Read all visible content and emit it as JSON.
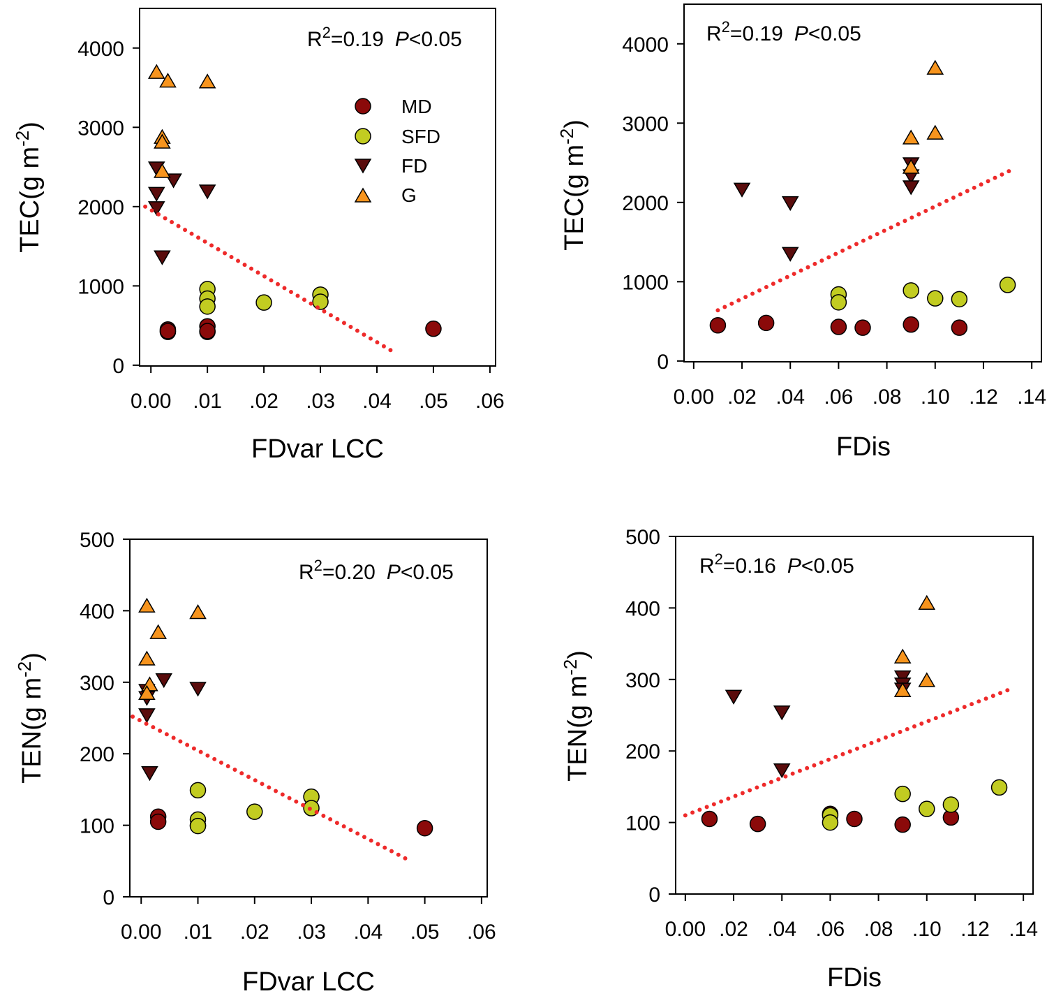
{
  "colors": {
    "MD": "#8b0a0a",
    "SFD": "#c2cc21",
    "FD": "#5a0c0c",
    "G": "#f7941d",
    "fit": "#ee2a2a"
  },
  "legend": [
    {
      "label": "MD",
      "shape": "circle"
    },
    {
      "label": "SFD",
      "shape": "circle"
    },
    {
      "label": "FD",
      "shape": "triangle-down"
    },
    {
      "label": "G",
      "shape": "triangle-up"
    }
  ],
  "chart_data": [
    {
      "type": "scatter",
      "id": "tec-fdvar",
      "xlabel": "FDvar LCC",
      "ylabel": "TEC(g m-2)",
      "ylabel_base": "TEC(g m",
      "ylabel_exp": "-2",
      "ylabel_end": ")",
      "xlim": [
        -0.002,
        0.061
      ],
      "ylim": [
        -10,
        4500
      ],
      "xticks": [
        0,
        0.01,
        0.02,
        0.03,
        0.04,
        0.05,
        0.06
      ],
      "xtick_labels": [
        "0.00",
        ".01",
        ".02",
        ".03",
        ".04",
        ".05",
        ".06"
      ],
      "yticks": [
        0,
        1000,
        2000,
        3000,
        4000
      ],
      "ytick_labels": [
        "0",
        "1000",
        "2000",
        "3000",
        "4000"
      ],
      "stat": {
        "r2_prefix": "R",
        "r2_sup": "2",
        "r2_value": "=0.19",
        "p_letter": "P",
        "p_value": "<0.05"
      },
      "fit": {
        "x": [
          -0.001,
          0.043
        ],
        "y": [
          2000,
          165
        ]
      },
      "show_legend": true,
      "series": [
        {
          "name": "MD",
          "points": [
            [
              0.003,
              450
            ],
            [
              0.003,
              420
            ],
            [
              0.003,
              430
            ],
            [
              0.01,
              490
            ],
            [
              0.01,
              420
            ],
            [
              0.01,
              430
            ],
            [
              0.05,
              460
            ]
          ]
        },
        {
          "name": "SFD",
          "points": [
            [
              0.01,
              960
            ],
            [
              0.01,
              840
            ],
            [
              0.01,
              740
            ],
            [
              0.02,
              790
            ],
            [
              0.03,
              890
            ],
            [
              0.03,
              800
            ]
          ]
        },
        {
          "name": "FD",
          "points": [
            [
              0.001,
              2500
            ],
            [
              0.001,
              2180
            ],
            [
              0.001,
              2000
            ],
            [
              0.002,
              1380
            ],
            [
              0.004,
              2350
            ],
            [
              0.01,
              2210
            ]
          ]
        },
        {
          "name": "G",
          "points": [
            [
              0.001,
              3680
            ],
            [
              0.003,
              3570
            ],
            [
              0.002,
              2860
            ],
            [
              0.002,
              2800
            ],
            [
              0.002,
              2430
            ],
            [
              0.01,
              3560
            ]
          ]
        }
      ]
    },
    {
      "type": "scatter",
      "id": "tec-fdis",
      "xlabel": "FDis",
      "ylabel": "TEC(g m-2)",
      "ylabel_base": "TEC(g m",
      "ylabel_exp": "-2",
      "ylabel_end": ")",
      "xlim": [
        -0.004,
        0.144
      ],
      "ylim": [
        -10,
        4500
      ],
      "xticks": [
        0,
        0.02,
        0.04,
        0.06,
        0.08,
        0.1,
        0.12,
        0.14
      ],
      "xtick_labels": [
        "0.00",
        ".02",
        ".04",
        ".06",
        ".08",
        ".10",
        ".12",
        ".14"
      ],
      "yticks": [
        0,
        1000,
        2000,
        3000,
        4000
      ],
      "ytick_labels": [
        "0",
        "1000",
        "2000",
        "3000",
        "4000"
      ],
      "stat": {
        "r2_prefix": "R",
        "r2_sup": "2",
        "r2_value": "=0.19",
        "p_letter": "P",
        "p_value": "<0.05"
      },
      "fit": {
        "x": [
          0.01,
          0.133
        ],
        "y": [
          640,
          2430
        ]
      },
      "show_legend": false,
      "series": [
        {
          "name": "MD",
          "points": [
            [
              0.01,
              450
            ],
            [
              0.03,
              480
            ],
            [
              0.06,
              430
            ],
            [
              0.07,
              420
            ],
            [
              0.09,
              460
            ],
            [
              0.11,
              420
            ]
          ]
        },
        {
          "name": "SFD",
          "points": [
            [
              0.06,
              840
            ],
            [
              0.06,
              740
            ],
            [
              0.09,
              890
            ],
            [
              0.1,
              790
            ],
            [
              0.11,
              780
            ],
            [
              0.13,
              960
            ]
          ]
        },
        {
          "name": "FD",
          "points": [
            [
              0.02,
              2180
            ],
            [
              0.04,
              2010
            ],
            [
              0.04,
              1370
            ],
            [
              0.09,
              2500
            ],
            [
              0.09,
              2350
            ],
            [
              0.09,
              2210
            ]
          ]
        },
        {
          "name": "G",
          "points": [
            [
              0.1,
              3680
            ],
            [
              0.09,
              2800
            ],
            [
              0.1,
              2860
            ],
            [
              0.09,
              2430
            ]
          ]
        }
      ]
    },
    {
      "type": "scatter",
      "id": "ten-fdvar",
      "xlabel": "FDvar LCC",
      "ylabel": "TEN(g m-2)",
      "ylabel_base": "TEN(g m",
      "ylabel_exp": "-2",
      "ylabel_end": ")",
      "xlim": [
        -0.002,
        0.061
      ],
      "ylim": [
        0,
        500
      ],
      "xticks": [
        0,
        0.01,
        0.02,
        0.03,
        0.04,
        0.05,
        0.06
      ],
      "xtick_labels": [
        "0.00",
        ".01",
        ".02",
        ".03",
        ".04",
        ".05",
        ".06"
      ],
      "yticks": [
        0,
        100,
        200,
        300,
        400,
        500
      ],
      "ytick_labels": [
        "0",
        "100",
        "200",
        "300",
        "400",
        "500"
      ],
      "stat": {
        "r2_prefix": "R",
        "r2_sup": "2",
        "r2_value": "=0.20",
        "p_letter": "P",
        "p_value": "<0.05"
      },
      "fit": {
        "x": [
          -0.0015,
          0.047
        ],
        "y": [
          252,
          52
        ]
      },
      "show_legend": false,
      "series": [
        {
          "name": "MD",
          "points": [
            [
              0.003,
              112
            ],
            [
              0.003,
              105
            ],
            [
              0.01,
              100
            ],
            [
              0.05,
              96
            ]
          ]
        },
        {
          "name": "SFD",
          "points": [
            [
              0.01,
              149
            ],
            [
              0.01,
              108
            ],
            [
              0.01,
              99
            ],
            [
              0.02,
              119
            ],
            [
              0.03,
              140
            ],
            [
              0.03,
              124
            ]
          ]
        },
        {
          "name": "FD",
          "points": [
            [
              0.001,
              290
            ],
            [
              0.001,
              280
            ],
            [
              0.001,
              256
            ],
            [
              0.0015,
              175
            ],
            [
              0.004,
              305
            ],
            [
              0.01,
              293
            ]
          ]
        },
        {
          "name": "G",
          "points": [
            [
              0.001,
              405
            ],
            [
              0.003,
              368
            ],
            [
              0.001,
              331
            ],
            [
              0.0015,
              295
            ],
            [
              0.001,
              283
            ],
            [
              0.01,
              396
            ]
          ]
        }
      ]
    },
    {
      "type": "scatter",
      "id": "ten-fdis",
      "xlabel": "FDis",
      "ylabel": "TEN(g m-2)",
      "ylabel_base": "TEN(g m",
      "ylabel_exp": "-2",
      "ylabel_end": ")",
      "xlim": [
        -0.004,
        0.144
      ],
      "ylim": [
        0,
        500
      ],
      "xticks": [
        0,
        0.02,
        0.04,
        0.06,
        0.08,
        0.1,
        0.12,
        0.14
      ],
      "xtick_labels": [
        "0.00",
        ".02",
        ".04",
        ".06",
        ".08",
        ".10",
        ".12",
        ".14"
      ],
      "yticks": [
        0,
        100,
        200,
        300,
        400,
        500
      ],
      "ytick_labels": [
        "0",
        "100",
        "200",
        "300",
        "400",
        "500"
      ],
      "stat": {
        "r2_prefix": "R",
        "r2_sup": "2",
        "r2_value": "=0.16",
        "p_letter": "P",
        "p_value": "<0.05"
      },
      "fit": {
        "x": [
          0,
          0.135
        ],
        "y": [
          110,
          287
        ]
      },
      "show_legend": false,
      "series": [
        {
          "name": "MD",
          "points": [
            [
              0.01,
              105
            ],
            [
              0.03,
              98
            ],
            [
              0.06,
              112
            ],
            [
              0.07,
              105
            ],
            [
              0.09,
              97
            ],
            [
              0.11,
              107
            ]
          ]
        },
        {
          "name": "SFD",
          "points": [
            [
              0.06,
              110
            ],
            [
              0.06,
              100
            ],
            [
              0.09,
              140
            ],
            [
              0.1,
              119
            ],
            [
              0.11,
              125
            ],
            [
              0.13,
              149
            ]
          ]
        },
        {
          "name": "FD",
          "points": [
            [
              0.02,
              278
            ],
            [
              0.04,
              256
            ],
            [
              0.04,
              175
            ],
            [
              0.09,
              305
            ],
            [
              0.09,
              295
            ],
            [
              0.09,
              288
            ]
          ]
        },
        {
          "name": "G",
          "points": [
            [
              0.1,
              405
            ],
            [
              0.09,
              330
            ],
            [
              0.1,
              297
            ],
            [
              0.09,
              283
            ]
          ]
        }
      ]
    }
  ]
}
